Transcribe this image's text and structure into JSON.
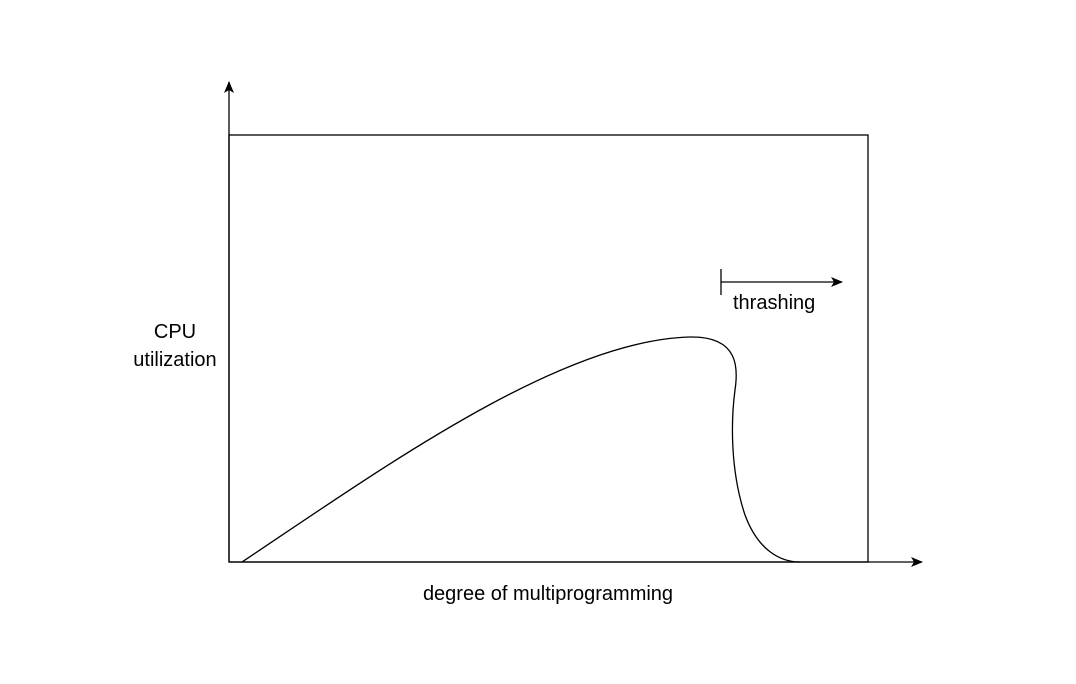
{
  "labels": {
    "y_axis_line1": "CPU",
    "y_axis_line2": "utilization",
    "x_axis": "degree of multiprogramming",
    "region": "thrashing"
  },
  "colors": {
    "stroke": "#000000",
    "background": "#ffffff",
    "text": "#000000"
  }
}
